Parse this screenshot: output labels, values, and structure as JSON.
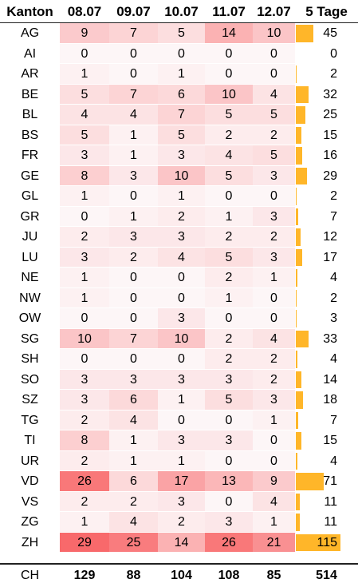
{
  "chart_data": {
    "type": "table",
    "headers": {
      "canton": "Kanton",
      "days": [
        "08.07",
        "09.07",
        "10.07",
        "11.07",
        "12.07"
      ],
      "total": "5 Tage"
    },
    "rows": [
      {
        "canton": "AG",
        "values": [
          9,
          7,
          5,
          14,
          10
        ],
        "total": 45
      },
      {
        "canton": "AI",
        "values": [
          0,
          0,
          0,
          0,
          0
        ],
        "total": 0
      },
      {
        "canton": "AR",
        "values": [
          1,
          0,
          1,
          0,
          0
        ],
        "total": 2
      },
      {
        "canton": "BE",
        "values": [
          5,
          7,
          6,
          10,
          4
        ],
        "total": 32
      },
      {
        "canton": "BL",
        "values": [
          4,
          4,
          7,
          5,
          5
        ],
        "total": 25
      },
      {
        "canton": "BS",
        "values": [
          5,
          1,
          5,
          2,
          2
        ],
        "total": 15
      },
      {
        "canton": "FR",
        "values": [
          3,
          1,
          3,
          4,
          5
        ],
        "total": 16
      },
      {
        "canton": "GE",
        "values": [
          8,
          3,
          10,
          5,
          3
        ],
        "total": 29
      },
      {
        "canton": "GL",
        "values": [
          1,
          0,
          1,
          0,
          0
        ],
        "total": 2
      },
      {
        "canton": "GR",
        "values": [
          0,
          1,
          2,
          1,
          3
        ],
        "total": 7
      },
      {
        "canton": "JU",
        "values": [
          2,
          3,
          3,
          2,
          2
        ],
        "total": 12
      },
      {
        "canton": "LU",
        "values": [
          3,
          2,
          4,
          5,
          3
        ],
        "total": 17
      },
      {
        "canton": "NE",
        "values": [
          1,
          0,
          0,
          2,
          1
        ],
        "total": 4
      },
      {
        "canton": "NW",
        "values": [
          1,
          0,
          0,
          1,
          0
        ],
        "total": 2
      },
      {
        "canton": "OW",
        "values": [
          0,
          0,
          3,
          0,
          0
        ],
        "total": 3
      },
      {
        "canton": "SG",
        "values": [
          10,
          7,
          10,
          2,
          4
        ],
        "total": 33
      },
      {
        "canton": "SH",
        "values": [
          0,
          0,
          0,
          2,
          2
        ],
        "total": 4
      },
      {
        "canton": "SO",
        "values": [
          3,
          3,
          3,
          3,
          2
        ],
        "total": 14
      },
      {
        "canton": "SZ",
        "values": [
          3,
          6,
          1,
          5,
          3
        ],
        "total": 18
      },
      {
        "canton": "TG",
        "values": [
          2,
          4,
          0,
          0,
          1
        ],
        "total": 7
      },
      {
        "canton": "TI",
        "values": [
          8,
          1,
          3,
          3,
          0
        ],
        "total": 15
      },
      {
        "canton": "UR",
        "values": [
          2,
          1,
          1,
          0,
          0
        ],
        "total": 4
      },
      {
        "canton": "VD",
        "values": [
          26,
          6,
          17,
          13,
          9
        ],
        "total": 71
      },
      {
        "canton": "VS",
        "values": [
          2,
          2,
          3,
          0,
          4
        ],
        "total": 11
      },
      {
        "canton": "ZG",
        "values": [
          1,
          4,
          2,
          3,
          1
        ],
        "total": 11
      },
      {
        "canton": "ZH",
        "values": [
          29,
          25,
          14,
          26,
          21
        ],
        "total": 115
      }
    ],
    "summary": {
      "canton": "CH",
      "values": [
        129,
        88,
        104,
        108,
        85
      ],
      "total": 514
    },
    "heat_color_low": "#fdf6f7",
    "heat_color_high": "#f8696b",
    "bar_color": "#ffb629"
  }
}
